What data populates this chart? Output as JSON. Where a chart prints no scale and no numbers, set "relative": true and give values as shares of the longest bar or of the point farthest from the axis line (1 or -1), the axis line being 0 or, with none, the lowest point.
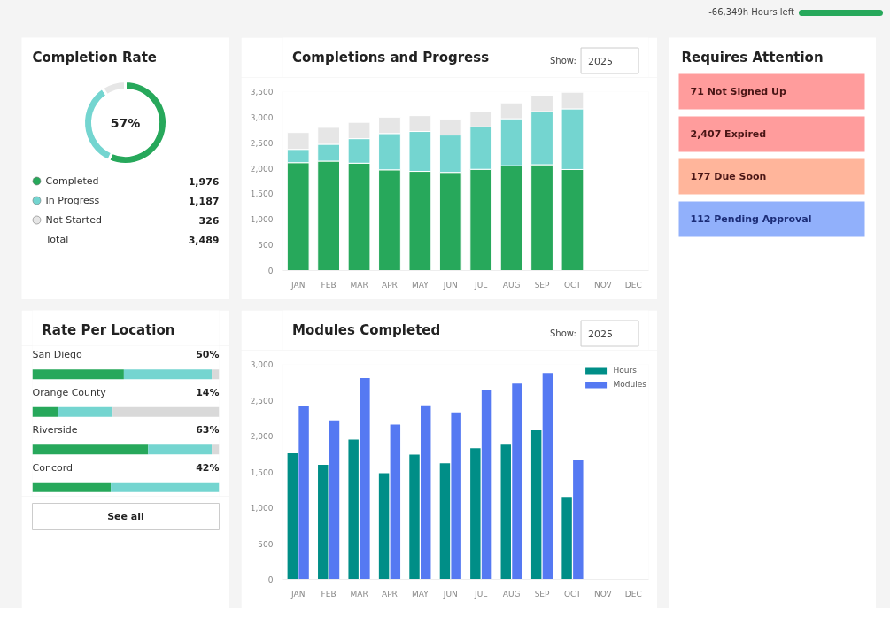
{
  "chart_data": [
    {
      "type": "other",
      "annotations": [
        "-66,349h Hours left"
      ]
    },
    {
      "type": "donut",
      "title": "Completion Rate",
      "categories": [
        "Completed",
        "In Progress",
        "Not Started"
      ],
      "values": [
        1976,
        1187,
        326
      ],
      "colors": [
        "#27a85b",
        "#74d5d0",
        "#e6e6e6"
      ],
      "value_labels": [
        "1,976",
        "1,187",
        "326"
      ],
      "legend": "bottom",
      "annotations": [
        "57%",
        "Total",
        "3,489"
      ]
    },
    {
      "type": "bar",
      "stacked": true,
      "title": "Completions and Progress",
      "categories": [
        "JAN",
        "FEB",
        "MAR",
        "APR",
        "MAY",
        "JUN",
        "JUL",
        "AUG",
        "SEP",
        "OCT",
        "NOV",
        "DEC"
      ],
      "series": [
        {
          "color": "#27a85b",
          "values": [
            2110,
            2140,
            2100,
            1970,
            1940,
            1920,
            1980,
            2050,
            2070,
            1976,
            null,
            null
          ]
        },
        {
          "color": "#74d5d0",
          "values": [
            260,
            330,
            480,
            710,
            780,
            730,
            830,
            920,
            1040,
            1187,
            null,
            null
          ]
        },
        {
          "color": "#e6e6e6",
          "values": [
            330,
            330,
            320,
            320,
            310,
            310,
            300,
            310,
            320,
            326,
            null,
            null
          ]
        }
      ],
      "ylim": [
        0,
        3500
      ],
      "yticks": [
        0,
        {
          "value": 500,
          "label": "500"
        },
        {
          "value": 1000,
          "label": "1,000"
        },
        {
          "value": 1500,
          "label": "1,500"
        },
        {
          "value": 2000,
          "label": "2,000"
        },
        {
          "value": 2500,
          "label": "2,500"
        },
        {
          "value": 3000,
          "label": "3,000"
        },
        {
          "value": 3500,
          "label": "3,500"
        }
      ],
      "annotations": [
        "Show:",
        "2025"
      ]
    },
    {
      "type": "other",
      "title": "Requires Attention",
      "annotations": [
        "71 Not Signed Up",
        "2,407 Expired",
        "177 Due Soon",
        "112 Pending Approval"
      ],
      "colors": [
        "#ff9c9c",
        "#ff9c9c",
        "#ffb59b",
        "#91b0fb"
      ]
    },
    {
      "type": "bar",
      "orientation": "horizontal",
      "stacked": true,
      "relative": true,
      "title": "Rate Per Location",
      "categories": [
        "San Diego",
        "Orange County",
        "Riverside",
        "Concord"
      ],
      "series": [
        {
          "color": "#27a85b",
          "values": [
            0.49,
            0.14,
            0.62,
            0.42
          ]
        },
        {
          "color": "#74d5d0",
          "values": [
            0.47,
            0.29,
            0.34,
            0.58
          ]
        },
        {
          "color": "#d9d9d9",
          "values": [
            0.04,
            0.57,
            0.04,
            0
          ]
        }
      ],
      "value_labels": [
        "50%",
        "14%",
        "63%",
        "42%"
      ],
      "annotations": [
        "See all"
      ]
    },
    {
      "type": "bar",
      "title": "Modules Completed",
      "categories": [
        "JAN",
        "FEB",
        "MAR",
        "APR",
        "MAY",
        "JUN",
        "JUL",
        "AUG",
        "SEP",
        "OCT",
        "NOV",
        "DEC"
      ],
      "series": [
        {
          "name": "Hours",
          "color": "#008e87",
          "values": [
            1760,
            1600,
            1950,
            1480,
            1740,
            1620,
            1830,
            1880,
            2080,
            1150,
            null,
            null
          ]
        },
        {
          "name": "Modules",
          "color": "#5579f2",
          "values": [
            2420,
            2220,
            2810,
            2160,
            2430,
            2330,
            2640,
            2730,
            2880,
            1670,
            null,
            null
          ]
        }
      ],
      "ylim": [
        0,
        3000
      ],
      "yticks": [
        0,
        {
          "value": 500,
          "label": "500"
        },
        {
          "value": 1000,
          "label": "1,000"
        },
        {
          "value": 1500,
          "label": "1,500"
        },
        {
          "value": 2000,
          "label": "2,000"
        },
        {
          "value": 2500,
          "label": "2,500"
        },
        {
          "value": 3000,
          "label": "3,000"
        }
      ],
      "legend": "top right",
      "annotations": [
        "Show:",
        "2025"
      ]
    }
  ]
}
